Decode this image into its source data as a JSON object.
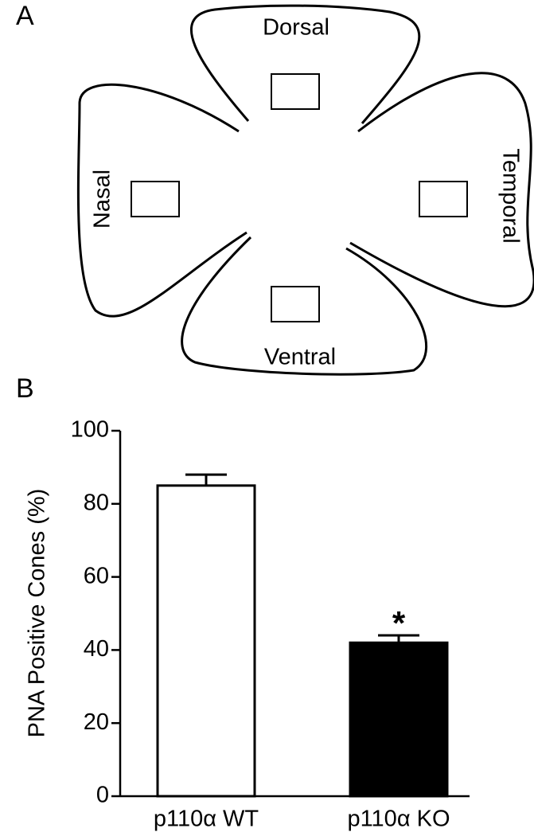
{
  "diagram": {
    "panel_label": "A",
    "regions": [
      "Dorsal",
      "Temporal",
      "Ventral",
      "Nasal"
    ]
  },
  "chart_data": {
    "type": "bar",
    "panel_label": "B",
    "ylabel": "PNA Positive Cones (%)",
    "categories": [
      "p110α WT",
      "p110α KO"
    ],
    "values": [
      85,
      42
    ],
    "errors": [
      3,
      2
    ],
    "colors": [
      "#ffffff",
      "#000000"
    ],
    "ylim": [
      0,
      100
    ],
    "yticks": [
      0,
      20,
      40,
      60,
      80,
      100
    ],
    "annotations": [
      {
        "text": "*",
        "category": "p110α KO"
      }
    ]
  }
}
